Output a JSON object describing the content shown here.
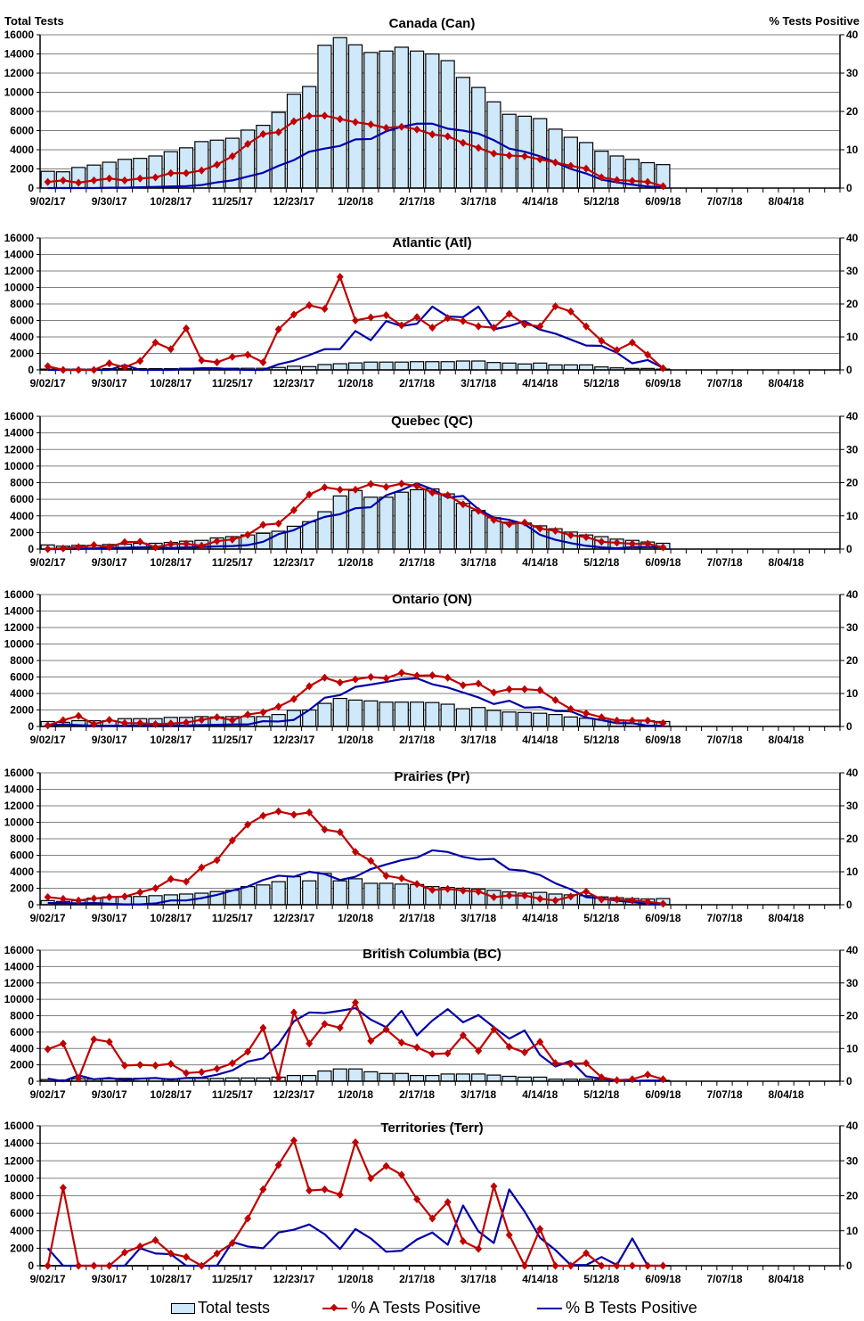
{
  "chart_data": {
    "type": "bar+line",
    "left_axis_title": "Total Tests",
    "right_axis_title": "% Tests Positive",
    "ylim_left": [
      0,
      16000
    ],
    "yticks_left": [
      "0",
      "2000",
      "4000",
      "6000",
      "8000",
      "10000",
      "12000",
      "14000",
      "16000"
    ],
    "ylim_right": [
      0,
      40
    ],
    "yticks_right": [
      "0",
      "10",
      "20",
      "30",
      "40"
    ],
    "grid": true,
    "xlim": [
      "9/02/17",
      "8/25/18"
    ],
    "x_tick_labels": [
      "9/02/17",
      "9/30/17",
      "10/28/17",
      "11/25/17",
      "12/23/17",
      "1/20/18",
      "2/17/18",
      "3/17/18",
      "4/14/18",
      "5/12/18",
      "6/09/18",
      "7/07/18",
      "8/04/18"
    ],
    "x": [
      "9/02/17",
      "9/09/17",
      "9/16/17",
      "9/23/17",
      "9/30/17",
      "10/07/17",
      "10/14/17",
      "10/21/17",
      "10/28/17",
      "11/04/17",
      "11/11/17",
      "11/18/17",
      "11/25/17",
      "12/02/17",
      "12/09/17",
      "12/16/17",
      "12/23/17",
      "12/30/17",
      "1/06/18",
      "1/13/18",
      "1/20/18",
      "1/27/18",
      "2/03/18",
      "2/10/18",
      "2/17/18",
      "2/24/18",
      "3/03/18",
      "3/10/18",
      "3/17/18",
      "3/24/18",
      "3/31/18",
      "4/07/18",
      "4/14/18",
      "4/21/18",
      "4/28/18",
      "5/05/18",
      "5/12/18",
      "5/19/18",
      "5/26/18",
      "6/02/18",
      "6/09/18"
    ],
    "legend": {
      "placement": "bottom",
      "total": "Total tests",
      "pct_a": "% A Tests Positive",
      "pct_b": "% B Tests Positive"
    },
    "colors": {
      "bar_fill": "#cfe8fa",
      "bar_stroke": "#000000",
      "pct_a": "#c00000",
      "pct_b": "#0000a8",
      "grid": "#808080"
    },
    "panels": [
      {
        "title": "Canada (Can)",
        "total_tests": [
          1750,
          1700,
          2150,
          2400,
          2700,
          3000,
          3100,
          3350,
          3800,
          4200,
          4850,
          5000,
          5200,
          6050,
          6550,
          7900,
          9800,
          10600,
          14900,
          15700,
          14950,
          14150,
          14300,
          14700,
          14300,
          14000,
          13300,
          11550,
          10500,
          9000,
          7700,
          7500,
          7250,
          6150,
          5300,
          4750,
          3850,
          3350,
          3000,
          2650,
          2450
        ],
        "pct_a": [
          1.6,
          2.0,
          1.4,
          2.0,
          2.5,
          2.0,
          2.5,
          2.8,
          3.9,
          3.9,
          4.6,
          6.1,
          8.3,
          11.5,
          14.1,
          14.6,
          17.4,
          18.8,
          18.9,
          18.0,
          17.2,
          16.6,
          15.7,
          16.0,
          15.3,
          14.0,
          13.5,
          11.8,
          10.5,
          9.0,
          8.5,
          8.3,
          7.5,
          6.7,
          5.8,
          5.1,
          2.8,
          2.1,
          1.9,
          1.6,
          0.5
        ],
        "pct_b": [
          0,
          0,
          0,
          0,
          0.1,
          0.1,
          0.2,
          0.3,
          0.4,
          0.5,
          0.8,
          1.5,
          2.0,
          3.0,
          4.0,
          5.8,
          7.3,
          9.5,
          10.3,
          11.0,
          12.7,
          12.8,
          14.8,
          16.0,
          16.8,
          16.8,
          15.5,
          15.0,
          14.2,
          12.5,
          10.3,
          9.5,
          8.3,
          6.7,
          5.0,
          3.8,
          2.2,
          1.5,
          0.9,
          0.4,
          0.2
        ]
      },
      {
        "title": "Atlantic (Atl)",
        "total_tests": [
          100,
          100,
          100,
          100,
          150,
          150,
          150,
          150,
          150,
          200,
          200,
          200,
          200,
          200,
          200,
          300,
          450,
          400,
          650,
          750,
          850,
          950,
          950,
          950,
          1000,
          1000,
          1000,
          1080,
          1080,
          900,
          830,
          720,
          830,
          610,
          610,
          610,
          360,
          250,
          180,
          180,
          100
        ],
        "pct_a": [
          1.1,
          0,
          0,
          0,
          2.0,
          0.8,
          2.7,
          8.3,
          6.3,
          12.6,
          2.9,
          2.3,
          4.0,
          4.6,
          2.3,
          12.3,
          16.8,
          19.6,
          18.5,
          28.2,
          15.0,
          15.9,
          16.6,
          13.5,
          16.0,
          12.8,
          15.7,
          14.8,
          13.2,
          12.8,
          17.0,
          13.8,
          13.2,
          19.3,
          17.7,
          13.2,
          8.8,
          6.0,
          8.3,
          4.6,
          0.5
        ],
        "pct_b": [
          0,
          0,
          0,
          0,
          0,
          1.5,
          0,
          0,
          0,
          0.3,
          0.5,
          0.5,
          0.2,
          0,
          0,
          1.7,
          2.8,
          4.5,
          6.3,
          6.3,
          11.8,
          9.0,
          14.8,
          13.3,
          14.0,
          19.2,
          16.2,
          16.0,
          19.2,
          12.3,
          13.3,
          14.8,
          12.2,
          11.0,
          9.2,
          7.4,
          7.3,
          5.2,
          2.0,
          3.0,
          0.6
        ]
      },
      {
        "title": "Quebec (QC)",
        "total_tests": [
          500,
          350,
          450,
          450,
          550,
          600,
          700,
          700,
          800,
          950,
          1050,
          1350,
          1500,
          1700,
          1900,
          2150,
          2750,
          3300,
          4500,
          6400,
          7050,
          6250,
          6250,
          6850,
          7150,
          7250,
          6650,
          5500,
          4650,
          3780,
          3240,
          3130,
          2800,
          2450,
          2050,
          1700,
          1500,
          1200,
          1050,
          850,
          700
        ],
        "pct_a": [
          0,
          0.2,
          0.6,
          1.2,
          0.6,
          2.1,
          2.2,
          0.5,
          1.5,
          1.6,
          1.0,
          2.4,
          2.9,
          4.3,
          7.3,
          7.7,
          11.7,
          16.4,
          18.6,
          17.9,
          17.9,
          19.6,
          18.7,
          19.7,
          19.0,
          17.0,
          16.2,
          13.5,
          11.5,
          8.8,
          7.5,
          8.0,
          6.2,
          5.5,
          4.2,
          3.6,
          2.2,
          1.9,
          1.6,
          1.6,
          0.5
        ],
        "pct_b": [
          0,
          0,
          0.1,
          0.2,
          0.3,
          0.4,
          0.5,
          0.6,
          0.3,
          0.5,
          0.6,
          0.8,
          0.9,
          1.2,
          2.2,
          4.5,
          5.7,
          8.0,
          9.7,
          10.5,
          12.3,
          12.6,
          16.2,
          17.8,
          19.8,
          18.0,
          15.5,
          16.0,
          12.0,
          9.5,
          8.8,
          7.5,
          4.3,
          2.8,
          1.8,
          1.0,
          0.5,
          0.2,
          0.6,
          0.6,
          0.6
        ]
      },
      {
        "title": "Ontario (ON)",
        "total_tests": [
          600,
          500,
          700,
          700,
          700,
          950,
          950,
          950,
          1100,
          1100,
          1200,
          1150,
          1200,
          1200,
          1200,
          1450,
          1950,
          2000,
          2800,
          3400,
          3200,
          3100,
          2950,
          2950,
          2950,
          2900,
          2700,
          2150,
          2300,
          1950,
          1750,
          1700,
          1600,
          1450,
          1150,
          1000,
          900,
          800,
          700,
          700,
          600
        ],
        "pct_a": [
          0.3,
          1.9,
          3.2,
          0.7,
          2.0,
          1.0,
          1.0,
          0.7,
          0.9,
          1.2,
          2.0,
          2.8,
          1.9,
          3.6,
          4.3,
          6.0,
          8.3,
          12.2,
          14.8,
          13.3,
          14.3,
          15.0,
          14.6,
          16.3,
          15.4,
          15.5,
          14.8,
          12.5,
          13.0,
          10.3,
          11.3,
          11.3,
          11.0,
          8.0,
          5.3,
          4.0,
          2.8,
          1.8,
          1.8,
          1.8,
          1.0
        ],
        "pct_b": [
          0.3,
          0.6,
          0.4,
          0.2,
          0.2,
          0.2,
          0.3,
          0.4,
          0.3,
          0.3,
          0.4,
          0.5,
          0.6,
          0.6,
          1.6,
          1.5,
          2.0,
          5.0,
          8.7,
          9.5,
          12.0,
          12.7,
          13.5,
          14.3,
          14.6,
          12.8,
          11.8,
          10.3,
          8.8,
          6.8,
          7.8,
          5.7,
          5.9,
          4.7,
          4.6,
          2.7,
          1.9,
          1.0,
          1.0,
          0.2,
          0.2
        ]
      },
      {
        "title": "Prairies (Pr)",
        "total_tests": [
          500,
          400,
          500,
          800,
          950,
          1000,
          1000,
          1100,
          1200,
          1300,
          1400,
          1600,
          1750,
          2200,
          2400,
          2800,
          3400,
          2900,
          3800,
          2900,
          3150,
          2600,
          2600,
          2500,
          2450,
          2200,
          2100,
          2000,
          1900,
          1750,
          1550,
          1400,
          1500,
          1300,
          1200,
          1100,
          950,
          850,
          750,
          700,
          750
        ],
        "pct_a": [
          2.3,
          1.8,
          1.3,
          1.9,
          2.3,
          2.5,
          3.8,
          5.0,
          7.8,
          7.0,
          11.3,
          13.5,
          19.5,
          24.3,
          27.0,
          28.3,
          27.3,
          28.0,
          22.8,
          22.0,
          16.0,
          13.3,
          8.8,
          8.0,
          6.3,
          4.5,
          4.8,
          4.3,
          4.0,
          2.3,
          2.8,
          2.8,
          1.8,
          1.3,
          2.5,
          4.0,
          1.6,
          1.6,
          1.3,
          0.9,
          0.3
        ],
        "pct_b": [
          0.5,
          0.5,
          0.4,
          0.5,
          0.3,
          0.1,
          0.1,
          0.4,
          1.3,
          1.3,
          2.0,
          3.0,
          4.3,
          5.5,
          7.5,
          8.8,
          8.5,
          10.0,
          9.3,
          7.5,
          8.5,
          10.8,
          12.2,
          13.5,
          14.3,
          16.5,
          16.0,
          14.5,
          13.7,
          13.9,
          10.7,
          10.3,
          9.0,
          6.5,
          4.7,
          2.3,
          2.0,
          1.2,
          0.8,
          0.3,
          0.2
        ]
      },
      {
        "title": "British Columbia (BC)",
        "total_tests": [
          200,
          150,
          300,
          250,
          300,
          350,
          350,
          350,
          300,
          350,
          350,
          350,
          400,
          400,
          400,
          500,
          700,
          700,
          1250,
          1500,
          1500,
          1150,
          950,
          950,
          700,
          700,
          880,
          880,
          880,
          750,
          600,
          500,
          500,
          250,
          250,
          250,
          200,
          150,
          100,
          100,
          100
        ],
        "pct_a": [
          9.8,
          11.5,
          0.8,
          12.8,
          12.0,
          4.8,
          5.0,
          4.8,
          5.3,
          2.5,
          2.8,
          3.8,
          5.5,
          9.0,
          16.3,
          1.0,
          21.0,
          11.5,
          17.5,
          16.3,
          24.0,
          12.3,
          15.8,
          11.8,
          10.3,
          8.3,
          8.5,
          14.0,
          9.3,
          15.8,
          10.5,
          8.8,
          12.0,
          5.5,
          5.3,
          5.5,
          1.2,
          0.3,
          0.6,
          2.0,
          0.6
        ],
        "pct_b": [
          0.8,
          0,
          1.8,
          0.6,
          1.0,
          0.4,
          0.8,
          1.0,
          0.5,
          1.0,
          1.1,
          2.0,
          3.3,
          6.0,
          7.0,
          11.3,
          18.3,
          21.0,
          20.8,
          21.5,
          22.3,
          18.8,
          16.5,
          21.5,
          14.0,
          18.5,
          22.0,
          18.0,
          20.2,
          16.5,
          13.0,
          15.5,
          8.0,
          4.5,
          6.2,
          1.5,
          0.8,
          0.2,
          0.1,
          0.2,
          0.2
        ]
      },
      {
        "title": "Territories (Terr)",
        "total_tests": [
          30,
          30,
          30,
          30,
          30,
          30,
          30,
          30,
          30,
          30,
          30,
          30,
          30,
          30,
          30,
          30,
          30,
          30,
          30,
          30,
          30,
          30,
          30,
          30,
          30,
          30,
          30,
          30,
          30,
          30,
          30,
          30,
          30,
          30,
          30,
          30,
          30,
          30,
          30,
          30,
          30
        ],
        "pct_a": [
          0,
          22.3,
          0,
          0,
          0,
          3.8,
          5.5,
          7.3,
          3.5,
          2.5,
          0,
          3.5,
          6.5,
          13.5,
          21.8,
          28.8,
          35.8,
          21.5,
          21.8,
          20.3,
          35.3,
          25.0,
          28.5,
          26.0,
          19.0,
          13.5,
          18.2,
          7.0,
          4.8,
          22.7,
          8.8,
          0,
          10.5,
          0,
          0,
          3.6,
          0,
          0,
          0,
          0,
          0
        ],
        "pct_b": [
          5.0,
          0,
          0,
          0,
          0,
          0,
          5.0,
          3.5,
          3.3,
          0,
          0,
          0,
          6.8,
          5.5,
          5.0,
          9.5,
          10.3,
          11.8,
          9.0,
          4.8,
          10.5,
          7.8,
          4.0,
          4.3,
          7.5,
          9.5,
          6.0,
          17.2,
          9.8,
          6.5,
          21.8,
          15.5,
          8.0,
          4.5,
          0.2,
          0.2,
          2.5,
          0.2,
          7.8,
          0,
          0
        ]
      }
    ]
  }
}
